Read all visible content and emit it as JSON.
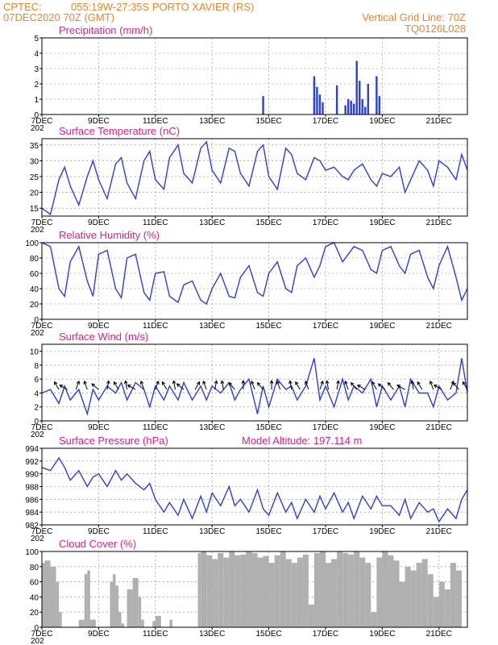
{
  "header": {
    "source": "CPTEC:",
    "location": "055:19W-27:35S  PORTO XAVIER (RS)",
    "run": "07DEC2020 70Z (GMT)",
    "grid_line": "Vertical Grid Line: 70Z",
    "code": "TQ0126L028",
    "color": "#e8862a"
  },
  "colors": {
    "line": "#2a3fe0",
    "bar": "#2a3fe0",
    "cloud": "#b0b0b0",
    "title": "#e0208a"
  },
  "x_axis": {
    "day_start": 7,
    "day_end": 22,
    "labels": [
      "7DEC",
      "9DEC",
      "11DEC",
      "13DEC",
      "15DEC",
      "17DEC",
      "19DEC",
      "21DEC"
    ],
    "label_days": [
      7,
      9,
      11,
      13,
      15,
      17,
      19,
      21
    ],
    "year_fragment": "202"
  },
  "chart_data": [
    {
      "id": "precip",
      "type": "bar",
      "title": "Precipitation (mm/h)",
      "ylim": [
        0,
        5
      ],
      "yticks": [
        0,
        1,
        2,
        3,
        4,
        5
      ],
      "grid": true,
      "x_day": [
        14.8,
        16.6,
        16.7,
        16.8,
        16.9,
        17.4,
        17.7,
        17.8,
        17.9,
        18.0,
        18.1,
        18.2,
        18.3,
        18.4,
        18.5,
        18.8,
        18.9
      ],
      "values": [
        1.2,
        2.5,
        1.8,
        1.3,
        0.8,
        1.9,
        0.6,
        1.0,
        0.9,
        0.7,
        3.5,
        2.2,
        1.0,
        0.5,
        2.0,
        2.5,
        1.2
      ]
    },
    {
      "id": "temp",
      "type": "line",
      "title": "Surface Temperature (nC)",
      "ylim": [
        12.5,
        37
      ],
      "yticks": [
        15,
        20,
        25,
        30,
        35
      ],
      "grid": true,
      "x_day": [
        7.0,
        7.3,
        7.6,
        7.8,
        8.0,
        8.3,
        8.6,
        8.8,
        9.0,
        9.3,
        9.6,
        9.8,
        10.0,
        10.3,
        10.6,
        10.8,
        11.0,
        11.3,
        11.5,
        11.8,
        12.0,
        12.3,
        12.6,
        12.8,
        13.0,
        13.3,
        13.6,
        13.8,
        14.0,
        14.3,
        14.6,
        14.8,
        15.0,
        15.3,
        15.6,
        15.8,
        16.0,
        16.3,
        16.6,
        16.8,
        17.0,
        17.3,
        17.6,
        17.8,
        18.0,
        18.3,
        18.6,
        18.8,
        19.0,
        19.3,
        19.6,
        19.8,
        20.0,
        20.3,
        20.6,
        20.8,
        21.0,
        21.3,
        21.6,
        21.8,
        22.0
      ],
      "values": [
        15,
        13,
        24,
        28,
        22,
        16,
        25,
        30,
        24,
        18,
        29,
        31,
        23,
        18,
        30,
        33,
        24,
        21,
        31,
        35,
        26,
        23,
        34,
        36,
        27,
        23,
        34,
        33,
        26,
        22,
        33,
        35,
        25,
        21,
        34,
        32,
        26,
        24,
        31,
        30,
        27,
        28,
        25,
        24,
        27,
        29,
        24,
        22,
        26,
        25,
        28,
        20,
        24,
        30,
        27,
        22,
        30,
        28,
        24,
        32,
        27
      ]
    },
    {
      "id": "rh",
      "type": "line",
      "title": "Relative Humidity (%)",
      "ylim": [
        0,
        100
      ],
      "yticks": [
        0,
        20,
        40,
        60,
        80,
        100
      ],
      "grid": true,
      "x_day": [
        7.0,
        7.3,
        7.6,
        7.8,
        8.0,
        8.3,
        8.6,
        8.8,
        9.0,
        9.3,
        9.6,
        9.8,
        10.0,
        10.3,
        10.6,
        10.8,
        11.0,
        11.3,
        11.5,
        11.8,
        12.0,
        12.3,
        12.6,
        12.8,
        13.0,
        13.3,
        13.6,
        13.8,
        14.0,
        14.3,
        14.6,
        14.8,
        15.0,
        15.3,
        15.6,
        15.8,
        16.0,
        16.3,
        16.6,
        16.8,
        17.0,
        17.3,
        17.6,
        17.8,
        18.0,
        18.3,
        18.6,
        18.8,
        19.0,
        19.3,
        19.6,
        19.8,
        20.0,
        20.3,
        20.6,
        20.8,
        21.0,
        21.3,
        21.6,
        21.8,
        22.0
      ],
      "values": [
        100,
        95,
        40,
        30,
        75,
        95,
        50,
        30,
        85,
        90,
        40,
        28,
        80,
        85,
        35,
        25,
        60,
        62,
        30,
        22,
        45,
        50,
        25,
        20,
        40,
        60,
        30,
        28,
        55,
        70,
        35,
        30,
        60,
        75,
        40,
        35,
        70,
        80,
        55,
        70,
        95,
        100,
        75,
        85,
        95,
        90,
        65,
        60,
        90,
        95,
        70,
        60,
        85,
        90,
        55,
        40,
        70,
        95,
        55,
        25,
        40
      ]
    },
    {
      "id": "wind",
      "type": "line",
      "title": "Surface Wind (m/s)",
      "ylim": [
        0,
        11
      ],
      "yticks": [
        0,
        2,
        4,
        6,
        8,
        10
      ],
      "grid": true,
      "x_day": [
        7.0,
        7.3,
        7.6,
        7.8,
        8.0,
        8.3,
        8.6,
        8.8,
        9.0,
        9.3,
        9.6,
        9.8,
        10.0,
        10.3,
        10.6,
        10.8,
        11.0,
        11.3,
        11.5,
        11.8,
        12.0,
        12.3,
        12.6,
        12.8,
        13.0,
        13.3,
        13.6,
        13.8,
        14.0,
        14.3,
        14.6,
        14.8,
        15.0,
        15.3,
        15.6,
        15.8,
        16.0,
        16.3,
        16.6,
        16.8,
        17.0,
        17.3,
        17.6,
        17.8,
        18.0,
        18.3,
        18.6,
        18.8,
        19.0,
        19.3,
        19.6,
        19.8,
        20.0,
        20.3,
        20.6,
        20.8,
        21.0,
        21.3,
        21.6,
        21.8,
        22.0
      ],
      "values": [
        4,
        4.5,
        2.5,
        5,
        3,
        4.5,
        1,
        4.5,
        3,
        5,
        4,
        5.5,
        3,
        5.5,
        4.5,
        2,
        5,
        3,
        5,
        3,
        5.5,
        3,
        5,
        3,
        5,
        4,
        5.5,
        3,
        4.5,
        6,
        1,
        5,
        2,
        6,
        4.5,
        5,
        3,
        5,
        9,
        3,
        5,
        2,
        6,
        3,
        5,
        4,
        6,
        2,
        5,
        3,
        5,
        2,
        6,
        4,
        4,
        2,
        5,
        3,
        4,
        9,
        4
      ],
      "arrow_days": [
        7.6,
        7.9,
        8.2,
        8.6,
        9.0,
        9.3,
        9.7,
        10.0,
        10.3,
        10.6,
        11.0,
        11.4,
        11.7,
        12.0,
        12.4,
        12.8,
        13.1,
        13.4,
        13.8,
        14.1,
        14.5,
        14.8,
        15.1,
        15.4,
        15.8,
        16.1,
        16.4,
        16.8,
        17.1,
        17.4,
        17.8,
        18.1,
        18.4,
        18.8,
        19.1,
        19.4,
        19.8,
        20.1,
        20.4,
        20.8,
        21.1,
        21.4,
        21.7,
        22.0
      ],
      "arrow_dirs": [
        330,
        300,
        20,
        340,
        310,
        10,
        330,
        350,
        300,
        340,
        20,
        330,
        350,
        310,
        30,
        340,
        10,
        350,
        320,
        0,
        340,
        320,
        0,
        340,
        350,
        330,
        340,
        20,
        350,
        10,
        340,
        320,
        300,
        330,
        310,
        320,
        300,
        350,
        330,
        340,
        300,
        20,
        320,
        330
      ]
    },
    {
      "id": "pressure",
      "type": "line",
      "title": "Surface Pressure (hPa)",
      "annotation": "Model Altitude: 197.114 m",
      "ylim": [
        982,
        994
      ],
      "yticks": [
        982,
        984,
        986,
        988,
        990,
        992,
        994
      ],
      "grid": true,
      "x_day": [
        7.0,
        7.3,
        7.6,
        7.8,
        8.0,
        8.3,
        8.6,
        8.8,
        9.0,
        9.3,
        9.6,
        9.8,
        10.0,
        10.3,
        10.6,
        10.8,
        11.0,
        11.3,
        11.5,
        11.8,
        12.0,
        12.3,
        12.6,
        12.8,
        13.0,
        13.3,
        13.6,
        13.8,
        14.0,
        14.3,
        14.6,
        14.8,
        15.0,
        15.3,
        15.6,
        15.8,
        16.0,
        16.3,
        16.6,
        16.8,
        17.0,
        17.3,
        17.6,
        17.8,
        18.0,
        18.3,
        18.6,
        18.8,
        19.0,
        19.3,
        19.6,
        19.8,
        20.0,
        20.3,
        20.6,
        20.8,
        21.0,
        21.3,
        21.6,
        21.8,
        22.0
      ],
      "values": [
        991,
        990.5,
        992.5,
        991,
        989,
        990.5,
        988,
        989.5,
        990,
        988,
        990.5,
        989,
        990,
        988.5,
        987.5,
        988.5,
        986,
        984,
        985.5,
        983.5,
        986,
        983,
        986.5,
        984,
        987,
        985,
        988,
        985,
        986,
        984,
        987.5,
        984.5,
        983.5,
        987,
        984,
        985.5,
        983,
        986,
        984,
        986.5,
        984.5,
        987,
        984,
        985.5,
        983,
        986.5,
        984.5,
        986.5,
        985,
        985,
        983.5,
        986,
        983,
        985.5,
        984,
        984.5,
        982.5,
        984.5,
        983,
        986,
        987.5
      ]
    },
    {
      "id": "cloud",
      "type": "area",
      "title": "Cloud Cover (%)",
      "ylim": [
        0,
        100
      ],
      "yticks": [
        0,
        20,
        40,
        60,
        80,
        100
      ],
      "grid": true,
      "x_day": [
        7.0,
        7.1,
        7.3,
        7.5,
        7.6,
        7.7,
        8.0,
        8.1,
        8.3,
        8.5,
        8.6,
        8.7,
        8.9,
        9.0,
        9.2,
        9.4,
        9.5,
        9.6,
        9.7,
        9.8,
        9.9,
        10.0,
        10.2,
        10.4,
        10.5,
        10.6,
        10.7,
        10.9,
        11.0,
        11.2,
        11.4,
        11.5,
        11.6,
        11.8,
        12.0,
        12.2,
        12.4,
        12.5,
        12.6,
        12.8,
        13.0,
        13.2,
        13.4,
        13.6,
        13.8,
        14.0,
        14.2,
        14.4,
        14.6,
        14.8,
        15.0,
        15.2,
        15.4,
        15.6,
        15.8,
        16.0,
        16.2,
        16.4,
        16.6,
        16.8,
        17.0,
        17.2,
        17.4,
        17.6,
        17.8,
        18.0,
        18.2,
        18.4,
        18.6,
        18.8,
        19.0,
        19.2,
        19.4,
        19.6,
        19.8,
        20.0,
        20.2,
        20.4,
        20.6,
        20.8,
        21.0,
        21.2,
        21.4,
        21.6,
        21.8,
        22.0
      ],
      "values": [
        85,
        88,
        80,
        60,
        20,
        0,
        0,
        0,
        10,
        70,
        75,
        10,
        0,
        0,
        0,
        60,
        70,
        55,
        20,
        5,
        0,
        50,
        65,
        40,
        10,
        0,
        0,
        8,
        15,
        0,
        0,
        10,
        0,
        0,
        0,
        0,
        0,
        98,
        100,
        95,
        90,
        98,
        92,
        100,
        95,
        96,
        100,
        98,
        92,
        94,
        85,
        95,
        100,
        90,
        85,
        92,
        96,
        30,
        98,
        100,
        85,
        90,
        100,
        98,
        96,
        100,
        92,
        85,
        20,
        92,
        100,
        95,
        88,
        60,
        80,
        75,
        85,
        90,
        70,
        40,
        60,
        50,
        85,
        75,
        0,
        0
      ]
    }
  ]
}
